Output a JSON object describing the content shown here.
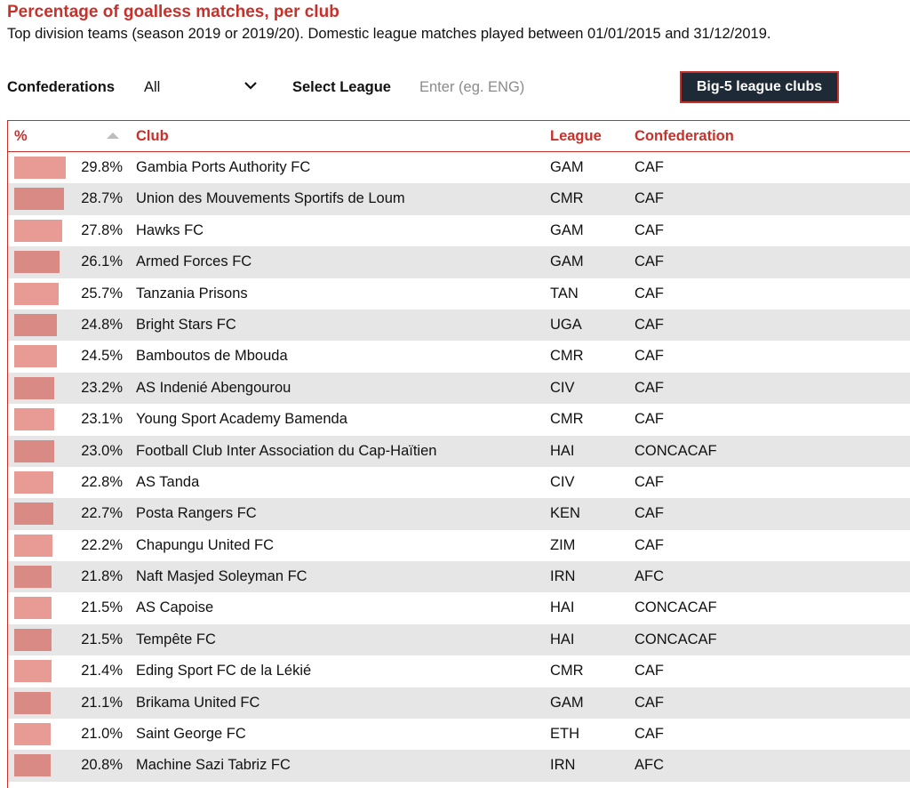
{
  "header": {
    "title": "Percentage of goalless matches, per club",
    "subtitle": "Top division teams (season 2019 or 2019/20). Domestic league matches played between 01/01/2015 and 31/12/2019."
  },
  "filters": {
    "confederations_label": "Confederations",
    "confederations_value": "All",
    "league_label": "Select League",
    "league_placeholder": "Enter (eg. ENG)",
    "league_value": "",
    "big5_button": "Big-5 league clubs"
  },
  "table": {
    "columns": {
      "pct": "%",
      "club": "Club",
      "league": "League",
      "confederation": "Confederation"
    },
    "bar_max": 29.8,
    "rows": [
      {
        "pct": 29.8,
        "pct_label": "29.8%",
        "club": "Gambia Ports Authority FC",
        "league": "GAM",
        "confederation": "CAF"
      },
      {
        "pct": 28.7,
        "pct_label": "28.7%",
        "club": "Union des Mouvements Sportifs de Loum",
        "league": "CMR",
        "confederation": "CAF"
      },
      {
        "pct": 27.8,
        "pct_label": "27.8%",
        "club": "Hawks FC",
        "league": "GAM",
        "confederation": "CAF"
      },
      {
        "pct": 26.1,
        "pct_label": "26.1%",
        "club": "Armed Forces FC",
        "league": "GAM",
        "confederation": "CAF"
      },
      {
        "pct": 25.7,
        "pct_label": "25.7%",
        "club": "Tanzania Prisons",
        "league": "TAN",
        "confederation": "CAF"
      },
      {
        "pct": 24.8,
        "pct_label": "24.8%",
        "club": "Bright Stars FC",
        "league": "UGA",
        "confederation": "CAF"
      },
      {
        "pct": 24.5,
        "pct_label": "24.5%",
        "club": "Bamboutos de Mbouda",
        "league": "CMR",
        "confederation": "CAF"
      },
      {
        "pct": 23.2,
        "pct_label": "23.2%",
        "club": "AS Indenié Abengourou",
        "league": "CIV",
        "confederation": "CAF"
      },
      {
        "pct": 23.1,
        "pct_label": "23.1%",
        "club": "Young Sport Academy Bamenda",
        "league": "CMR",
        "confederation": "CAF"
      },
      {
        "pct": 23.0,
        "pct_label": "23.0%",
        "club": "Football Club Inter Association du Cap-Haïtien",
        "league": "HAI",
        "confederation": "CONCACAF"
      },
      {
        "pct": 22.8,
        "pct_label": "22.8%",
        "club": "AS Tanda",
        "league": "CIV",
        "confederation": "CAF"
      },
      {
        "pct": 22.7,
        "pct_label": "22.7%",
        "club": "Posta Rangers FC",
        "league": "KEN",
        "confederation": "CAF"
      },
      {
        "pct": 22.2,
        "pct_label": "22.2%",
        "club": "Chapungu United FC",
        "league": "ZIM",
        "confederation": "CAF"
      },
      {
        "pct": 21.8,
        "pct_label": "21.8%",
        "club": "Naft Masjed Soleyman FC",
        "league": "IRN",
        "confederation": "AFC"
      },
      {
        "pct": 21.5,
        "pct_label": "21.5%",
        "club": "AS Capoise",
        "league": "HAI",
        "confederation": "CONCACAF"
      },
      {
        "pct": 21.5,
        "pct_label": "21.5%",
        "club": "Tempête FC",
        "league": "HAI",
        "confederation": "CONCACAF"
      },
      {
        "pct": 21.4,
        "pct_label": "21.4%",
        "club": "Eding Sport FC de la Lékié",
        "league": "CMR",
        "confederation": "CAF"
      },
      {
        "pct": 21.1,
        "pct_label": "21.1%",
        "club": "Brikama United FC",
        "league": "GAM",
        "confederation": "CAF"
      },
      {
        "pct": 21.0,
        "pct_label": "21.0%",
        "club": "Saint George FC",
        "league": "ETH",
        "confederation": "CAF"
      },
      {
        "pct": 20.8,
        "pct_label": "20.8%",
        "club": "Machine Sazi Tabriz FC",
        "league": "IRN",
        "confederation": "AFC"
      }
    ]
  },
  "colors": {
    "accent": "#c8302a",
    "button_bg": "#1e2a36",
    "bar": "#e89b95",
    "bar_alt": "#d98a85",
    "row_alt_bg": "#e6e6e6"
  },
  "icons": {
    "dropdown": "chevron-down-icon",
    "sort": "sort-ascending-icon"
  }
}
